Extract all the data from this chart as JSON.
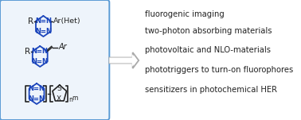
{
  "bg_color": "#ffffff",
  "box_color": "#5b9bd5",
  "box_bg": "#eef4fb",
  "text_color_black": "#222222",
  "text_color_blue": "#1a44bb",
  "bullet_texts": [
    "fluorogenic imaging",
    "two-photon absorbing materials",
    "photovoltaic and NLO-materials",
    "phototriggers to turn-on fluorophores",
    "sensitizers in photochemical HER"
  ],
  "bullet_fontsize": 7.2,
  "arrow_color": "#aaaaaa",
  "fig_width": 3.78,
  "fig_height": 1.51
}
